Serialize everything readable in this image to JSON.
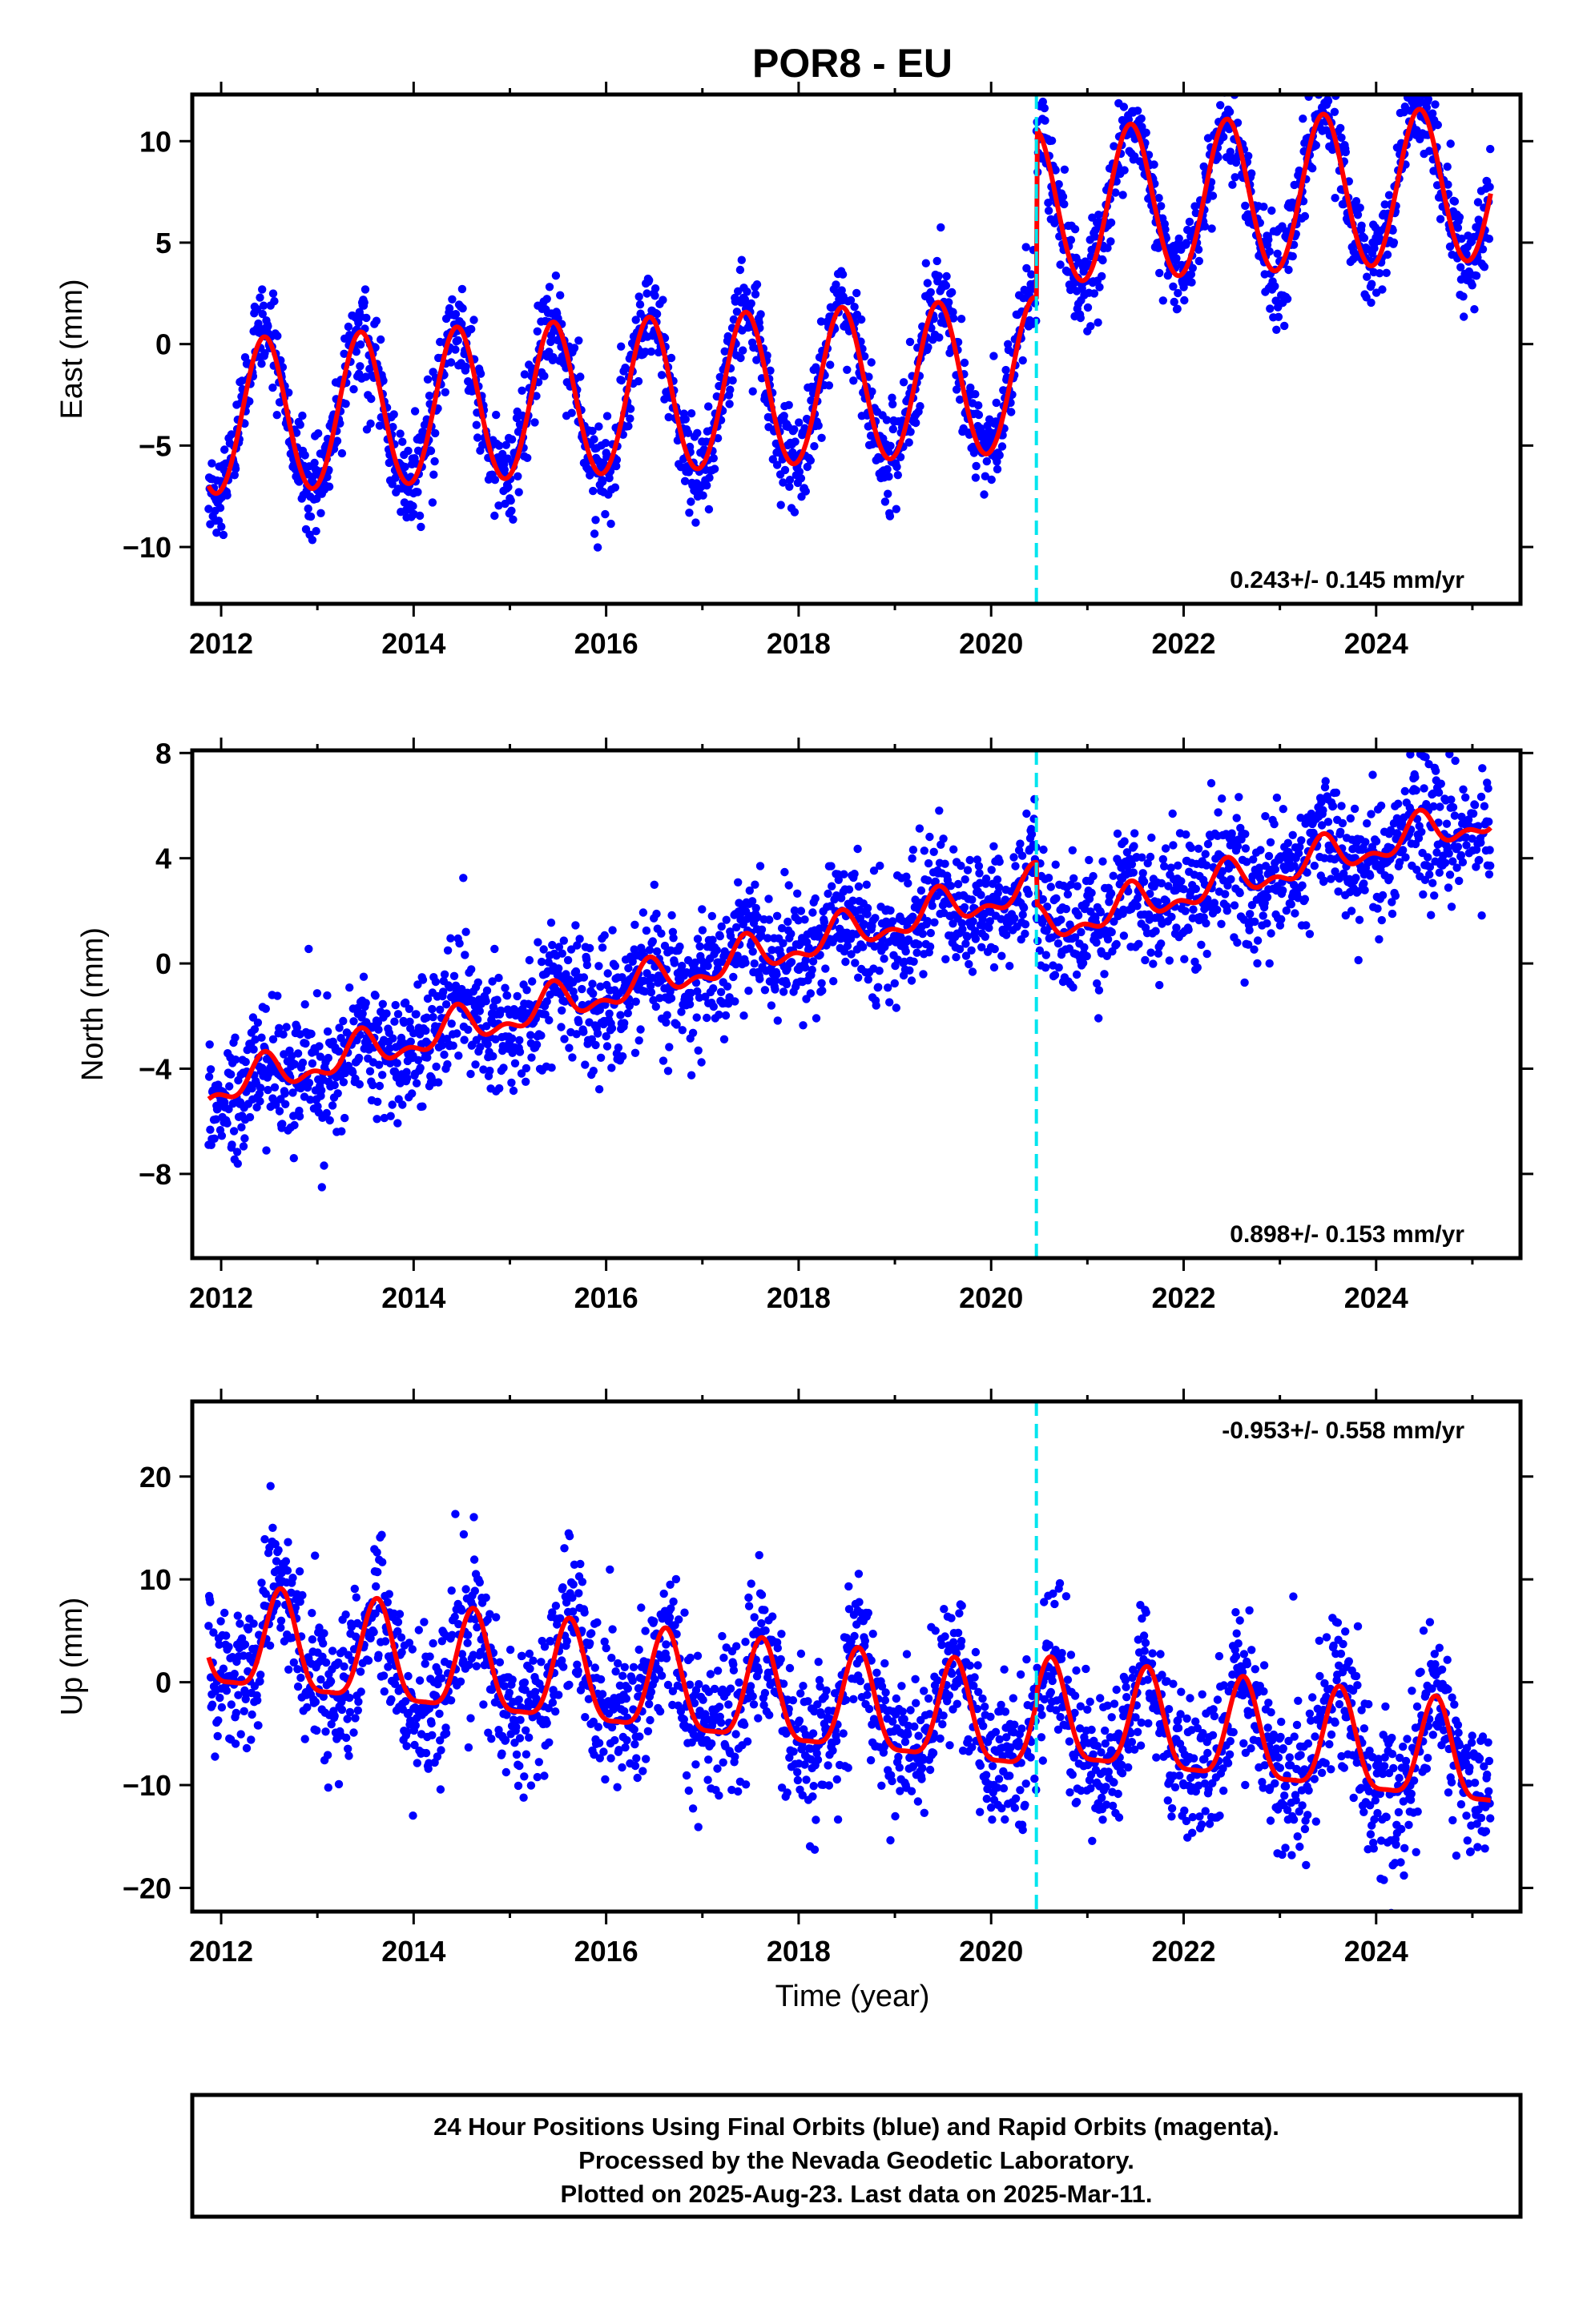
{
  "chart_data": {
    "type": "scatter",
    "title": "POR8 - EU",
    "xlabel": "Time (year)",
    "x_ticks": [
      2012,
      2014,
      2016,
      2018,
      2020,
      2022,
      2024
    ],
    "xlim": [
      2011.7,
      2025.5
    ],
    "marker_color": "#0000ff",
    "model_color": "#ff0000",
    "offset_line": {
      "year": 2020.47,
      "color": "#00e5ee"
    },
    "panels": [
      {
        "ylabel": "East (mm)",
        "ylim": [
          -12.8,
          12.3
        ],
        "y_ticks": [
          10,
          5,
          0,
          -5,
          -10
        ],
        "rate_text": "0.243+/- 0.145 mm/yr",
        "rate_position": "bottom-right",
        "model": {
          "trend": 0.243,
          "t0": 2012.0,
          "offset_before": -3.7,
          "offset_after": 4.6,
          "offset_year": 2020.47,
          "annual_amp": 3.8,
          "annual_peak": 0.45,
          "semi_amp": 0.15,
          "noise_mm": 1.1
        }
      },
      {
        "ylabel": "North (mm)",
        "ylim": [
          -11.2,
          8.1
        ],
        "y_ticks": [
          8,
          4,
          0,
          -4,
          -8
        ],
        "rate_text": "0.898+/- 0.153 mm/yr",
        "rate_position": "bottom-right",
        "model": {
          "trend": 0.898,
          "t0": 2012.0,
          "offset_before": -4.7,
          "offset_after": -6.3,
          "offset_year": 2020.47,
          "annual_amp": 0.6,
          "annual_peak": 0.45,
          "semi_amp": 0.35,
          "noise_mm": 1.2
        }
      },
      {
        "ylabel": "Up (mm)",
        "ylim": [
          -22.3,
          27.3
        ],
        "y_ticks": [
          20,
          10,
          0,
          -10,
          -20
        ],
        "rate_text": "-0.953+/- 0.558 mm/yr",
        "rate_position": "top-right",
        "model": {
          "trend": -0.953,
          "t0": 2012.0,
          "offset_before": 3.6,
          "offset_after": 4.6,
          "offset_year": 2020.47,
          "annual_amp": 4.8,
          "annual_peak": 0.62,
          "semi_amp": 1.3,
          "noise_mm": 3.6
        }
      }
    ]
  },
  "caption": {
    "line1": "24 Hour Positions Using Final Orbits (blue) and Rapid Orbits (magenta).",
    "line2": "Processed by the Nevada Geodetic Laboratory.",
    "line3": "Plotted on 2025-Aug-23. Last data on 2025-Mar-11."
  }
}
